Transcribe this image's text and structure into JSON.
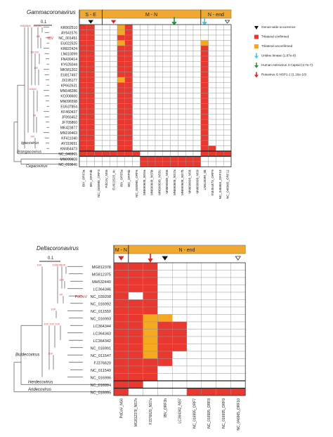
{
  "colors": {
    "confirmed": "#e8382f",
    "unconfirmed": "#f6a81e",
    "empty": "#ffffff",
    "gridline": "#999999",
    "header": "#f0a830",
    "tree": "#555555",
    "highlight_text": "#d42020",
    "bootstrap": "#e04040",
    "arrow_red": "#e02020",
    "arrow_green": "#1a9a3a",
    "arrow_cyan": "#40c8e8"
  },
  "panel_a": {
    "tree_title": "Gammacoronavirus",
    "scale_label": "0.1",
    "headers": [
      "S - E",
      "M - N",
      "N - end"
    ],
    "genus_labels": [
      "Igacovirus",
      "Brangacovirus",
      "Cegacovirus"
    ],
    "highlighted_row": "IBV NC_001451",
    "highlighted_prefix": "IBV",
    "rows": [
      "KR902510",
      "AY641576",
      "NC_001451",
      "EU022525",
      "KR822424",
      "LN610099",
      "FN430414",
      "KY626044",
      "MK581202",
      "EU817497",
      "JX195177",
      "KP662631",
      "MN548286",
      "KC008600",
      "MN096598",
      "EU637854",
      "KF460437",
      "JF893452",
      "JF705860",
      "MK423877",
      "MN199463",
      "KF411040",
      "AY319651",
      "KM454473",
      "NC_046965",
      "MN690608",
      "NC_010646"
    ],
    "columns": [
      "IBV_ORF3a",
      "IBV_ORF3b",
      "NC_046965_ORF3",
      "PdCoV_NS6",
      "EU022525_4c",
      "IBV_ORF5a",
      "IBV_ORF5b",
      "NC_046965_ORF6",
      "MN690608_NS5a",
      "MN690608_NS5b",
      "MN690608_NS5c",
      "MN690608_NS6",
      "MN690608_NS7a",
      "MN690608_NS7b",
      "MN690608_NS8",
      "MN690608_NS9",
      "LN610099_6b",
      "KM454473_ORF9",
      "NC_046965_ORF10",
      "NC_046965_ORF11"
    ],
    "legend": [
      {
        "icon": "black-triangle",
        "text": "Genus-wide occurrence"
      },
      {
        "icon": "red-square",
        "text": "Trilateral confirmed"
      },
      {
        "icon": "orange-square",
        "text": "Trilateral unconfirmed"
      },
      {
        "icon": "cyan-arrow",
        "text": "Uridine kinase (1.87e-8)"
      },
      {
        "icon": "green-arrow",
        "text": "Human Astrovirus 3 Capsid (4.7e-7)"
      },
      {
        "icon": "red-arrow",
        "text": "Rotavirus G NSP1-1 (1.16e-10)"
      }
    ],
    "bootstrap_labels": [
      "100",
      "100",
      "100",
      "100",
      "100",
      "99",
      "100",
      "100",
      "100",
      "100",
      "100",
      "100",
      "100"
    ]
  },
  "panel_b": {
    "tree_title": "Deltacoronavirus",
    "scale_label": "0.1",
    "headers": [
      "M - N",
      "N - end"
    ],
    "genus_labels": [
      "Buldecovirus",
      "Herdecovirus",
      "Andecovirus"
    ],
    "highlighted_row": "PdCoV NC_039208",
    "highlighted_prefix": "PdCoV",
    "rows": [
      "MG812378",
      "MG812375",
      "MH532440",
      "LC364346",
      "NC_039208",
      "NC_016992",
      "NC_011550",
      "NC_016993",
      "LC364344",
      "LC364343",
      "LC364342",
      "NC_016991",
      "NC_011547",
      "FJ376620",
      "NC_011549",
      "NC_016996",
      "NC_016994",
      "NC_016995"
    ],
    "columns": [
      "PdCoV_NS6",
      "MG812378_NS7b",
      "FJ376620_NS7a",
      "IBV_ORF3b",
      "LC364342_NS7",
      "NC_016995_ORF7",
      "NC_016995_ORF8",
      "NC_016995_ORF9",
      "NC_046965_ORF10"
    ],
    "bootstrap_labels": [
      "100",
      "100",
      "100",
      "99",
      "100",
      "100",
      "100",
      "100",
      "100",
      "100",
      "100"
    ]
  }
}
